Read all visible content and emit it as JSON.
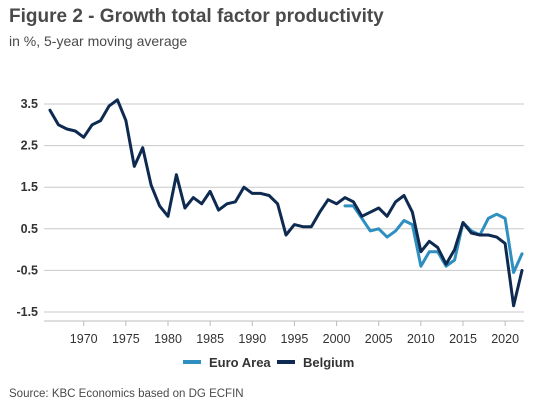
{
  "title": "Figure 2 - Growth total factor productivity",
  "subtitle": "in %, 5-year moving average",
  "source": "Source: KBC Economics based on DG ECFIN",
  "chart_data": {
    "type": "line",
    "title": "Figure 2 - Growth total factor productivity",
    "subtitle": "in %, 5-year moving average",
    "xlabel": "",
    "ylabel": "",
    "xlim": [
      1966,
      2022
    ],
    "ylim": [
      -1.5,
      3.5
    ],
    "xticks": [
      1970,
      1975,
      1980,
      1985,
      1990,
      1995,
      2000,
      2005,
      2010,
      2015,
      2020
    ],
    "yticks": [
      3.5,
      2.5,
      1.5,
      0.5,
      -0.5,
      -1.5
    ],
    "ytick_labels": [
      "3.5",
      "2.5",
      "1.5",
      "0.5",
      "-0.5",
      "-1.5"
    ],
    "grid": "horizontal",
    "legend_position": "bottom-center",
    "series": [
      {
        "name": "Euro Area",
        "color": "#2e8fc0",
        "x": [
          2001,
          2002,
          2003,
          2004,
          2005,
          2006,
          2007,
          2008,
          2009,
          2010,
          2011,
          2012,
          2013,
          2014,
          2015,
          2016,
          2017,
          2018,
          2019,
          2020,
          2021,
          2022
        ],
        "y": [
          1.05,
          1.05,
          0.75,
          0.45,
          0.5,
          0.3,
          0.45,
          0.7,
          0.6,
          -0.4,
          -0.05,
          -0.05,
          -0.4,
          -0.25,
          0.65,
          0.45,
          0.35,
          0.75,
          0.85,
          0.75,
          -0.55,
          -0.1
        ]
      },
      {
        "name": "Belgium",
        "color": "#0e2a50",
        "x": [
          1966,
          1967,
          1968,
          1969,
          1970,
          1971,
          1972,
          1973,
          1974,
          1975,
          1976,
          1977,
          1978,
          1979,
          1980,
          1981,
          1982,
          1983,
          1984,
          1985,
          1986,
          1987,
          1988,
          1989,
          1990,
          1991,
          1992,
          1993,
          1994,
          1995,
          1996,
          1997,
          1998,
          1999,
          2000,
          2001,
          2002,
          2003,
          2004,
          2005,
          2006,
          2007,
          2008,
          2009,
          2010,
          2011,
          2012,
          2013,
          2014,
          2015,
          2016,
          2017,
          2018,
          2019,
          2020,
          2021,
          2022
        ],
        "y": [
          3.35,
          3.0,
          2.9,
          2.85,
          2.7,
          3.0,
          3.1,
          3.45,
          3.6,
          3.1,
          2.0,
          2.45,
          1.55,
          1.05,
          0.8,
          1.8,
          1.0,
          1.25,
          1.1,
          1.4,
          0.95,
          1.1,
          1.15,
          1.5,
          1.35,
          1.35,
          1.3,
          1.1,
          0.35,
          0.6,
          0.55,
          0.55,
          0.9,
          1.2,
          1.1,
          1.25,
          1.15,
          0.8,
          0.9,
          1.0,
          0.8,
          1.15,
          1.3,
          0.9,
          -0.05,
          0.2,
          0.05,
          -0.35,
          0.0,
          0.65,
          0.4,
          0.35,
          0.35,
          0.3,
          0.15,
          -1.35,
          -0.5
        ]
      }
    ]
  }
}
